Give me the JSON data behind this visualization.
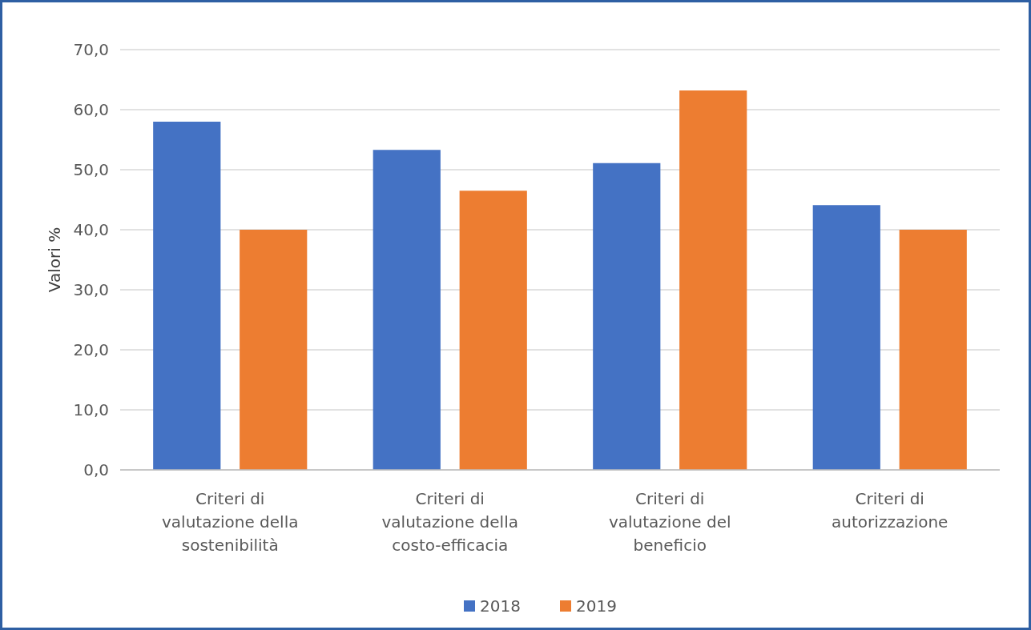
{
  "chart_data": {
    "type": "bar",
    "ylabel": "Valori %",
    "categories": [
      "Criteri di valutazione della sostenibilità",
      "Criteri di valutazione della costo-efficacia",
      "Criteri di valutazione del beneficio",
      "Criteri di autorizzazione"
    ],
    "series": [
      {
        "name": "2018",
        "color": "#4472c4",
        "values": [
          58.0,
          53.3,
          51.1,
          44.1
        ]
      },
      {
        "name": "2019",
        "color": "#ed7d31",
        "values": [
          40.0,
          46.5,
          63.2,
          40.0
        ]
      }
    ],
    "ylim": [
      0,
      70
    ],
    "yticks": [
      {
        "value": 0,
        "label": "0,0"
      },
      {
        "value": 10,
        "label": "10,0"
      },
      {
        "value": 20,
        "label": "20,0"
      },
      {
        "value": 30,
        "label": "30,0"
      },
      {
        "value": 40,
        "label": "40,0"
      },
      {
        "value": 50,
        "label": "50,0"
      },
      {
        "value": 60,
        "label": "60,0"
      },
      {
        "value": 70,
        "label": "70,0"
      }
    ],
    "grid": "y",
    "legend": "bottom"
  }
}
